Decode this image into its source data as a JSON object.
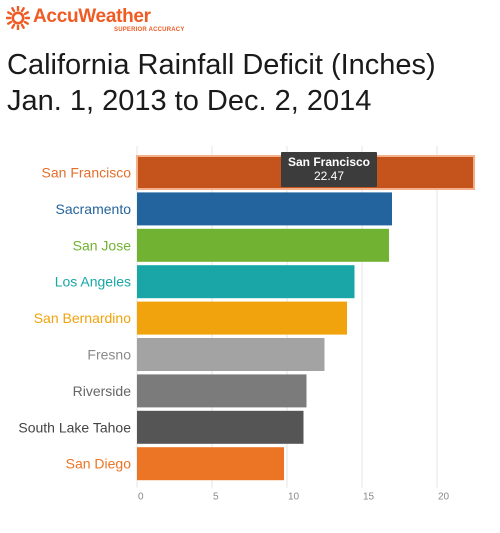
{
  "brand": {
    "name": "AccuWeather",
    "tagline": "SUPERIOR ACCURACY",
    "color": "#f05a23",
    "icon": "sun-icon"
  },
  "title": {
    "line1": "California Rainfall Deficit (Inches)",
    "line2": "Jan. 1, 2013 to Dec. 2, 2014"
  },
  "tooltip": {
    "name": "San Francisco",
    "value": "22.47"
  },
  "chart_data": {
    "type": "bar",
    "orientation": "horizontal",
    "title": "California Rainfall Deficit (Inches)",
    "subtitle": "Jan. 1, 2013 to Dec. 2, 2014",
    "categories": [
      "San Francisco",
      "Sacramento",
      "San Jose",
      "Los Angeles",
      "San Bernardino",
      "Fresno",
      "Riverside",
      "South Lake Tahoe",
      "San Diego"
    ],
    "values": [
      22.47,
      17.0,
      16.8,
      14.5,
      14.0,
      12.5,
      11.3,
      11.1,
      9.8
    ],
    "colors": [
      "#c4541b",
      "#24649e",
      "#71b232",
      "#1aa6a6",
      "#f0a30c",
      "#a3a3a3",
      "#7b7b7b",
      "#555555",
      "#ec7525"
    ],
    "label_colors": [
      "#e2702d",
      "#24649e",
      "#71b232",
      "#1aa6a6",
      "#f0a30c",
      "#8a8a8a",
      "#666666",
      "#444444",
      "#ec7525"
    ],
    "xticks": [
      "0",
      "5",
      "10",
      "15",
      "20"
    ],
    "xlim": [
      0,
      24
    ],
    "xlabel": "",
    "ylabel": "",
    "grid": true,
    "legend": "none",
    "highlighted": "San Francisco"
  }
}
